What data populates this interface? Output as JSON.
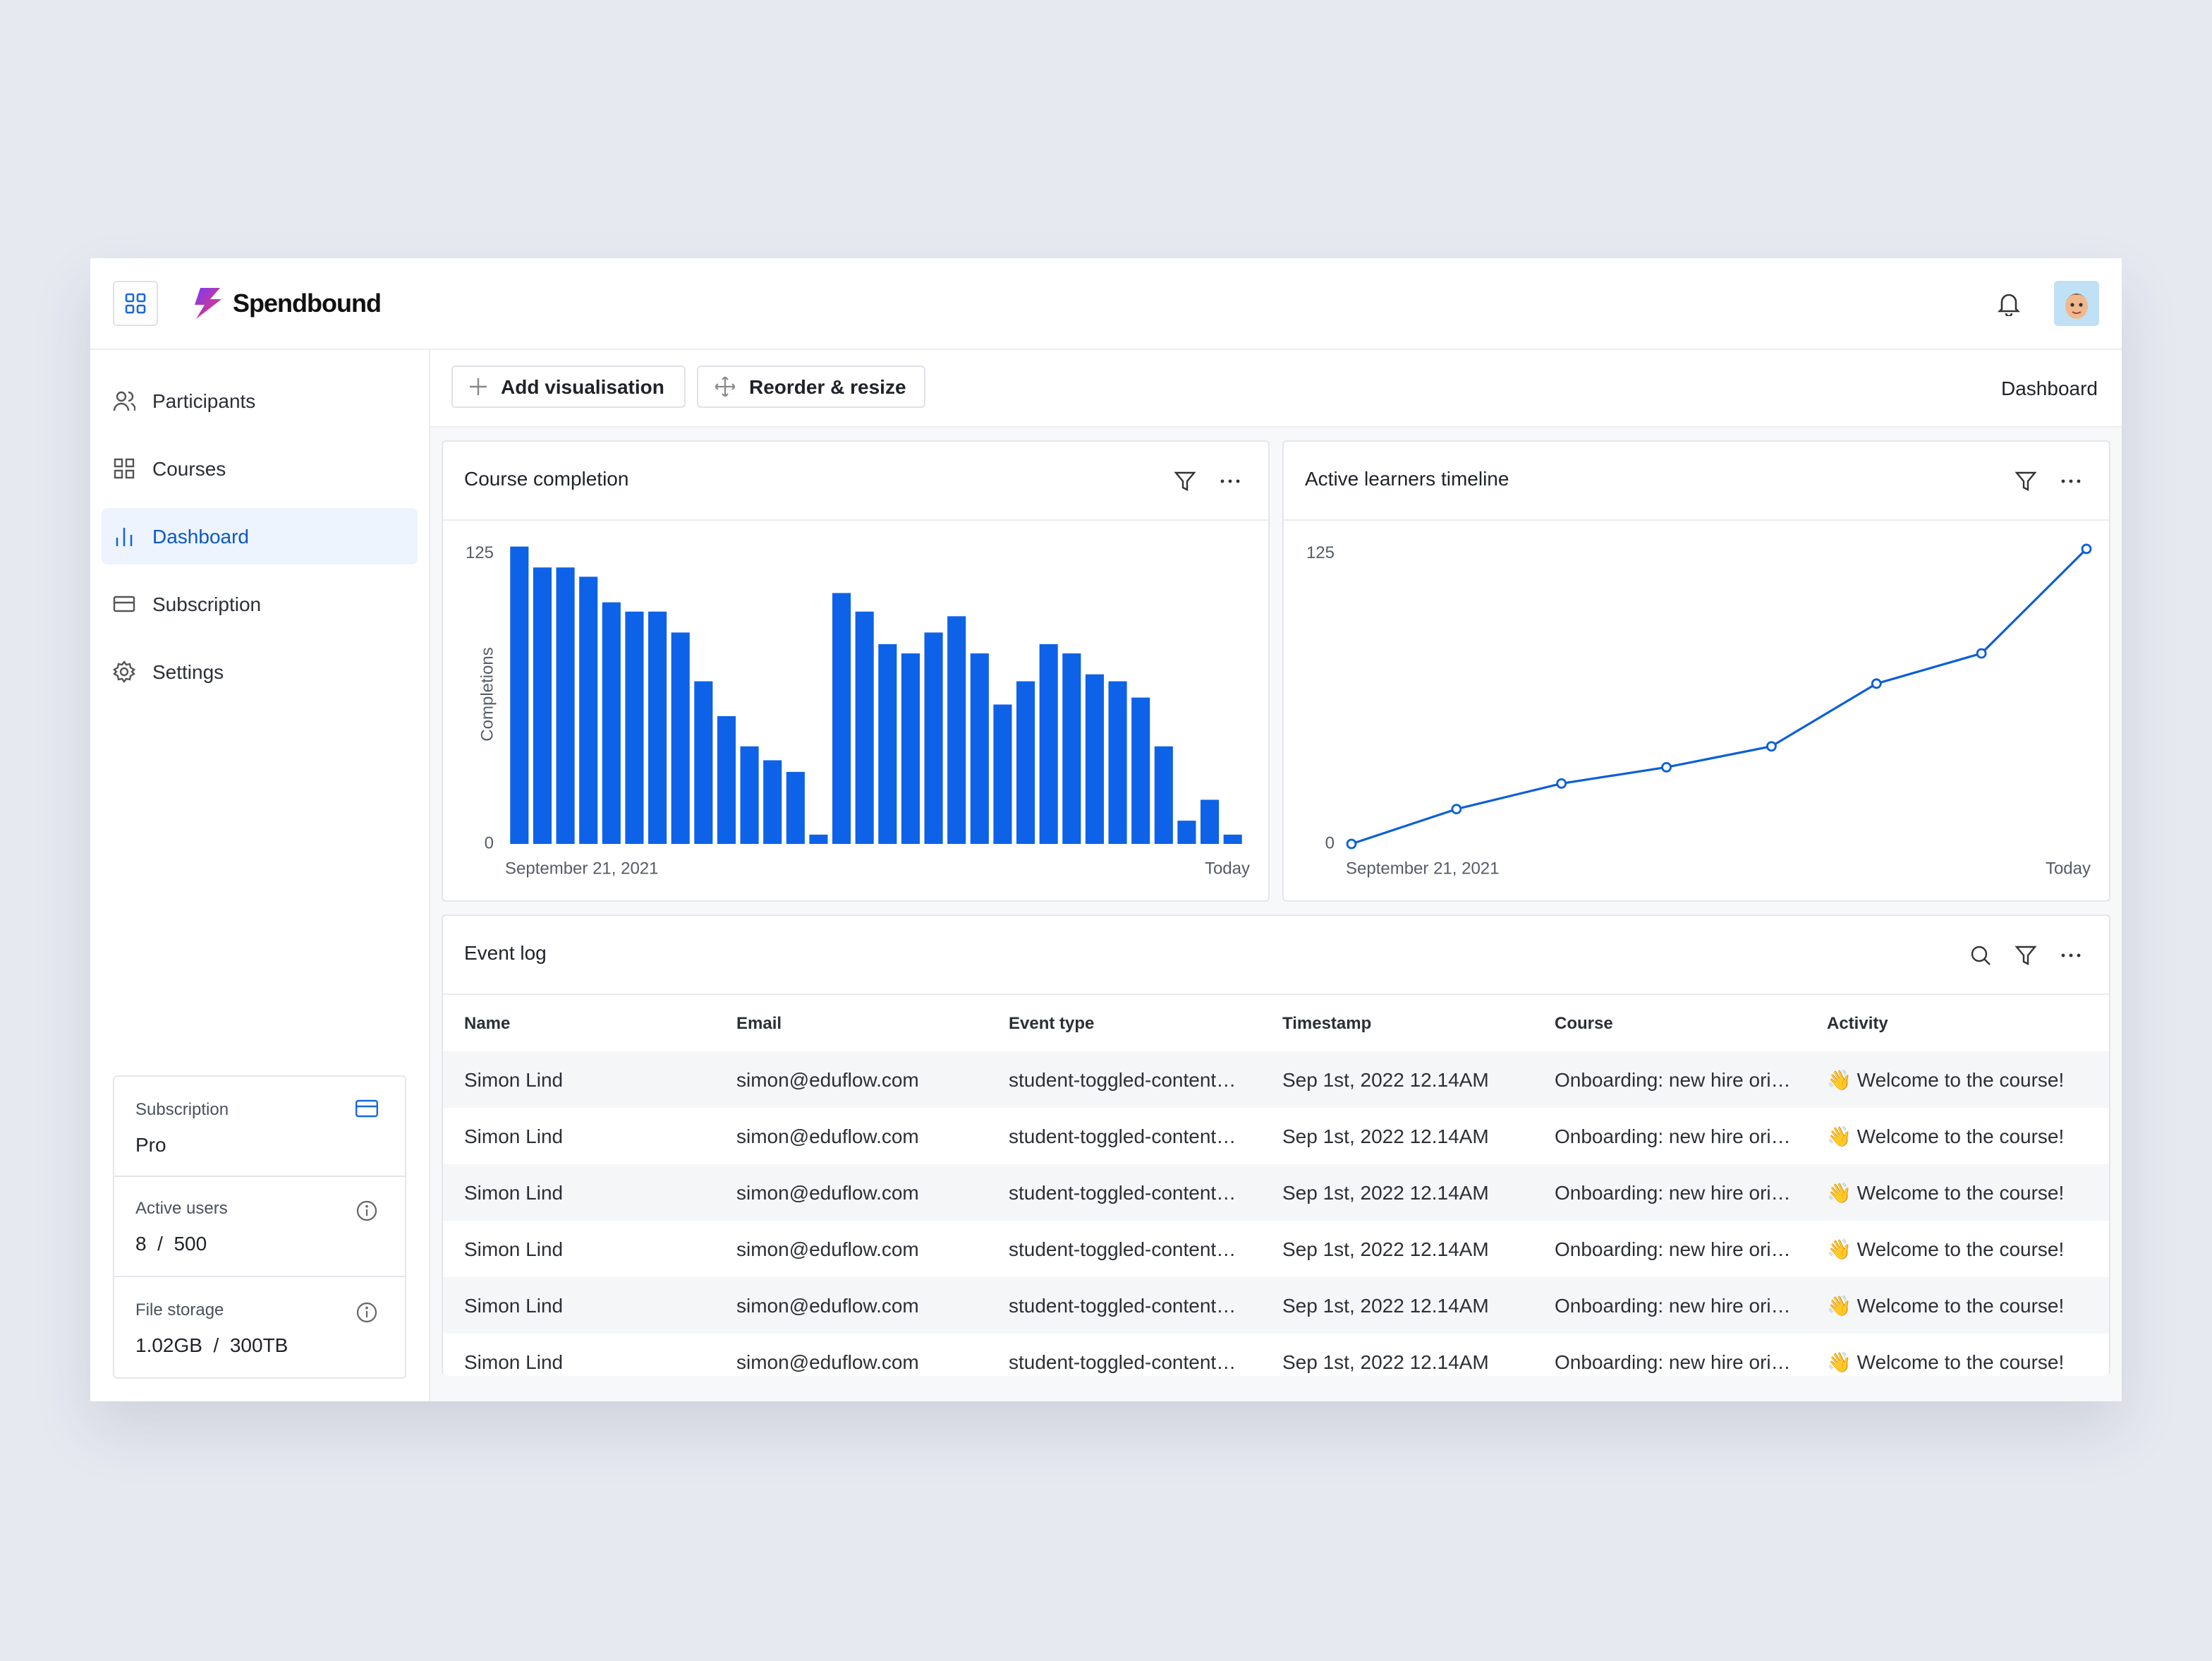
{
  "header": {
    "brand": "Spendbound"
  },
  "nav": [
    "Participants",
    "Courses",
    "Dashboard",
    "Subscription",
    "Settings"
  ],
  "usage": [
    {
      "label": "Subscription",
      "value": "Pro"
    },
    {
      "label": "Active users",
      "value": "8  /  500"
    },
    {
      "label": "File storage",
      "value": "1.02GB  /  300TB"
    }
  ],
  "toolbar": {
    "buttons": [
      "Add visualisation",
      "Reorder & resize"
    ],
    "breadcrumb": "Dashboard"
  },
  "chart_data": [
    {
      "type": "bar",
      "title": "Course completion",
      "y_label": "Completions",
      "color": "#0d62e8",
      "categories": [
        "September 21, 2021",
        null,
        null,
        null,
        null,
        null,
        null,
        null,
        null,
        null,
        null,
        null,
        null,
        null,
        null,
        null,
        null,
        null,
        null,
        null,
        null,
        null,
        null,
        null,
        null,
        null,
        null,
        null,
        null,
        null,
        null,
        "Today"
      ],
      "values": [
        128,
        119,
        119,
        115,
        104,
        100,
        100,
        91,
        70,
        55,
        42,
        36,
        31,
        4,
        108,
        100,
        86,
        82,
        91,
        98,
        82,
        60,
        70,
        86,
        82,
        73,
        70,
        63,
        42,
        10,
        19,
        4
      ],
      "ylim": [
        0,
        130
      ],
      "yticks": [
        0,
        125
      ],
      "grid": false
    },
    {
      "type": "line",
      "title": "Active learners timeline",
      "color": "#0b5fd8",
      "categories": [
        "September 21, 2021",
        null,
        null,
        null,
        null,
        null,
        null,
        "Today"
      ],
      "values": [
        0,
        15,
        26,
        33,
        42,
        69,
        82,
        127
      ],
      "ylim": [
        0,
        130
      ],
      "yticks": [
        0,
        125
      ],
      "grid": false
    }
  ],
  "event_log": {
    "title": "Event log",
    "columns": [
      "Name",
      "Email",
      "Event type",
      "Timestamp",
      "Course",
      "Activity"
    ],
    "rows": [
      [
        "Simon Lind",
        "simon@eduflow.com",
        "student-toggled-content…",
        "Sep 1st, 2022 12.14AM",
        "Onboarding: new hire ori…",
        "👋 Welcome to the course!"
      ],
      [
        "Simon Lind",
        "simon@eduflow.com",
        "student-toggled-content…",
        "Sep 1st, 2022 12.14AM",
        "Onboarding: new hire ori…",
        "👋 Welcome to the course!"
      ],
      [
        "Simon Lind",
        "simon@eduflow.com",
        "student-toggled-content…",
        "Sep 1st, 2022 12.14AM",
        "Onboarding: new hire ori…",
        "👋 Welcome to the course!"
      ],
      [
        "Simon Lind",
        "simon@eduflow.com",
        "student-toggled-content…",
        "Sep 1st, 2022 12.14AM",
        "Onboarding: new hire ori…",
        "👋 Welcome to the course!"
      ],
      [
        "Simon Lind",
        "simon@eduflow.com",
        "student-toggled-content…",
        "Sep 1st, 2022 12.14AM",
        "Onboarding: new hire ori…",
        "👋 Welcome to the course!"
      ],
      [
        "Simon Lind",
        "simon@eduflow.com",
        "student-toggled-content…",
        "Sep 1st, 2022 12.14AM",
        "Onboarding: new hire ori…",
        "👋 Welcome to the course!"
      ]
    ]
  }
}
